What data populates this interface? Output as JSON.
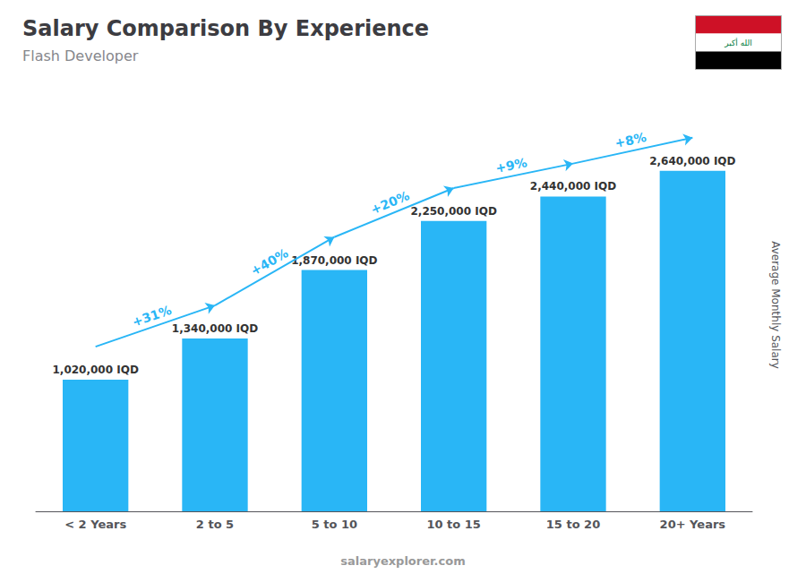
{
  "chart_data": {
    "type": "bar",
    "title": "Salary Comparison By Experience",
    "subtitle": "Flash Developer",
    "categories": [
      "< 2 Years",
      "2 to 5",
      "5 to 10",
      "10 to 15",
      "15 to 20",
      "20+ Years"
    ],
    "values": [
      1020000,
      1340000,
      1870000,
      2250000,
      2440000,
      2640000
    ],
    "value_labels": [
      "1,020,000 IQD",
      "1,340,000 IQD",
      "1,870,000 IQD",
      "2,250,000 IQD",
      "2,440,000 IQD",
      "2,640,000 IQD"
    ],
    "data_labels": true,
    "color": "#29b6f6",
    "ylabel": "Average Monthly Salary",
    "ylim": [
      0,
      3200000
    ],
    "tick_labels": "x",
    "grid": false,
    "annotations": [
      {
        "text": "+31%",
        "from": "< 2 Years",
        "to": "2 to 5"
      },
      {
        "text": "+40%",
        "from": "2 to 5",
        "to": "5 to 10"
      },
      {
        "text": "+20%",
        "from": "5 to 10",
        "to": "10 to 15"
      },
      {
        "text": "+9%",
        "from": "10 to 15",
        "to": "15 to 20"
      },
      {
        "text": "+8%",
        "from": "15 to 20",
        "to": "20+ Years"
      }
    ],
    "watermark": "salaryexplorer.com",
    "flag": {
      "text": "الله أكبر",
      "colors": [
        "#CE1126",
        "#FFFFFF",
        "#000000"
      ],
      "text_color": "#007A3D"
    }
  }
}
